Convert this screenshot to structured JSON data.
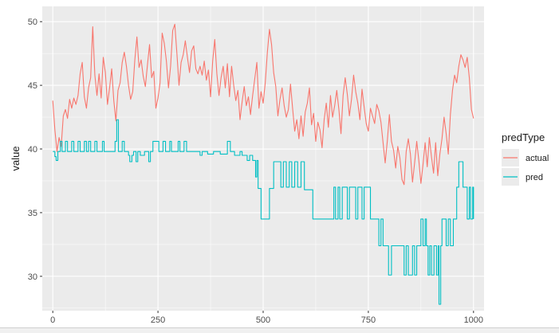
{
  "chart_data": {
    "type": "line",
    "title": "",
    "xlabel": "",
    "ylabel": "value",
    "xlim": [
      -25,
      1025
    ],
    "ylim": [
      27.3,
      51.2
    ],
    "x_ticks": [
      0,
      250,
      500,
      750,
      1000
    ],
    "y_ticks": [
      30,
      35,
      40,
      45,
      50
    ],
    "grid": true,
    "legend_title": "predType",
    "legend_position": "right",
    "series": [
      {
        "name": "actual",
        "color": "#F8766D",
        "points": [
          [
            0,
            43.8
          ],
          [
            5,
            41.5
          ],
          [
            10,
            39.8
          ],
          [
            15,
            40.9
          ],
          [
            20,
            40.2
          ],
          [
            25,
            42.6
          ],
          [
            30,
            43.1
          ],
          [
            35,
            42.4
          ],
          [
            40,
            43.9
          ],
          [
            45,
            43.2
          ],
          [
            50,
            44.0
          ],
          [
            55,
            43.5
          ],
          [
            60,
            44.2
          ],
          [
            65,
            45.9
          ],
          [
            70,
            46.8
          ],
          [
            75,
            44.1
          ],
          [
            80,
            43.2
          ],
          [
            85,
            44.8
          ],
          [
            90,
            45.6
          ],
          [
            95,
            49.6
          ],
          [
            100,
            45.8
          ],
          [
            105,
            44.2
          ],
          [
            110,
            45.9
          ],
          [
            115,
            44.0
          ],
          [
            120,
            47.2
          ],
          [
            125,
            46.0
          ],
          [
            130,
            43.5
          ],
          [
            135,
            44.8
          ],
          [
            140,
            46.3
          ],
          [
            145,
            43.8
          ],
          [
            150,
            42.2
          ],
          [
            155,
            44.6
          ],
          [
            160,
            45.2
          ],
          [
            165,
            46.8
          ],
          [
            170,
            47.6
          ],
          [
            175,
            46.5
          ],
          [
            180,
            45.0
          ],
          [
            185,
            43.9
          ],
          [
            190,
            44.5
          ],
          [
            195,
            47.0
          ],
          [
            200,
            48.8
          ],
          [
            205,
            46.4
          ],
          [
            210,
            47.0
          ],
          [
            215,
            45.7
          ],
          [
            220,
            44.9
          ],
          [
            225,
            46.6
          ],
          [
            230,
            48.2
          ],
          [
            235,
            45.6
          ],
          [
            240,
            46.1
          ],
          [
            245,
            43.2
          ],
          [
            250,
            44.0
          ],
          [
            255,
            45.2
          ],
          [
            260,
            49.1
          ],
          [
            265,
            48.3
          ],
          [
            270,
            46.9
          ],
          [
            275,
            44.8
          ],
          [
            280,
            46.5
          ],
          [
            285,
            49.3
          ],
          [
            290,
            49.8
          ],
          [
            295,
            47.5
          ],
          [
            300,
            45.0
          ],
          [
            305,
            46.8
          ],
          [
            310,
            47.4
          ],
          [
            315,
            48.5
          ],
          [
            320,
            47.2
          ],
          [
            325,
            46.0
          ],
          [
            330,
            47.7
          ],
          [
            335,
            48.1
          ],
          [
            340,
            46.3
          ],
          [
            345,
            45.9
          ],
          [
            350,
            46.5
          ],
          [
            355,
            45.8
          ],
          [
            360,
            46.9
          ],
          [
            365,
            45.4
          ],
          [
            370,
            46.2
          ],
          [
            375,
            44.1
          ],
          [
            380,
            46.9
          ],
          [
            385,
            48.6
          ],
          [
            390,
            45.9
          ],
          [
            395,
            44.2
          ],
          [
            400,
            45.6
          ],
          [
            405,
            46.5
          ],
          [
            410,
            44.8
          ],
          [
            415,
            46.7
          ],
          [
            420,
            44.1
          ],
          [
            425,
            46.5
          ],
          [
            430,
            45.0
          ],
          [
            435,
            43.8
          ],
          [
            440,
            44.6
          ],
          [
            445,
            42.3
          ],
          [
            450,
            43.7
          ],
          [
            455,
            44.9
          ],
          [
            460,
            43.4
          ],
          [
            465,
            44.1
          ],
          [
            470,
            42.7
          ],
          [
            475,
            44.2
          ],
          [
            480,
            45.5
          ],
          [
            485,
            46.8
          ],
          [
            490,
            43.2
          ],
          [
            495,
            44.5
          ],
          [
            500,
            43.6
          ],
          [
            505,
            45.2
          ],
          [
            510,
            47.6
          ],
          [
            515,
            49.4
          ],
          [
            520,
            48.2
          ],
          [
            525,
            46.0
          ],
          [
            530,
            44.9
          ],
          [
            535,
            42.6
          ],
          [
            540,
            43.9
          ],
          [
            545,
            44.8
          ],
          [
            550,
            43.4
          ],
          [
            555,
            42.5
          ],
          [
            560,
            43.1
          ],
          [
            565,
            45.1
          ],
          [
            570,
            43.2
          ],
          [
            575,
            41.4
          ],
          [
            580,
            42.3
          ],
          [
            585,
            40.8
          ],
          [
            590,
            42.6
          ],
          [
            595,
            41.0
          ],
          [
            600,
            42.9
          ],
          [
            605,
            43.6
          ],
          [
            610,
            44.8
          ],
          [
            615,
            41.9
          ],
          [
            620,
            42.8
          ],
          [
            625,
            40.6
          ],
          [
            630,
            42.1
          ],
          [
            635,
            41.5
          ],
          [
            640,
            40.1
          ],
          [
            645,
            42.3
          ],
          [
            650,
            43.6
          ],
          [
            655,
            41.7
          ],
          [
            660,
            44.2
          ],
          [
            665,
            42.5
          ],
          [
            670,
            43.4
          ],
          [
            675,
            44.6
          ],
          [
            680,
            43.1
          ],
          [
            685,
            41.2
          ],
          [
            690,
            44.2
          ],
          [
            695,
            45.6
          ],
          [
            700,
            44.3
          ],
          [
            705,
            42.6
          ],
          [
            710,
            43.9
          ],
          [
            715,
            45.8
          ],
          [
            720,
            44.5
          ],
          [
            725,
            43.6
          ],
          [
            730,
            42.3
          ],
          [
            735,
            44.7
          ],
          [
            740,
            43.3
          ],
          [
            745,
            42.0
          ],
          [
            750,
            41.4
          ],
          [
            755,
            43.2
          ],
          [
            760,
            42.6
          ],
          [
            765,
            42.0
          ],
          [
            770,
            43.5
          ],
          [
            775,
            43.0
          ],
          [
            780,
            42.1
          ],
          [
            785,
            40.5
          ],
          [
            790,
            38.9
          ],
          [
            795,
            40.6
          ],
          [
            800,
            42.7
          ],
          [
            805,
            40.6
          ],
          [
            810,
            39.9
          ],
          [
            815,
            38.5
          ],
          [
            820,
            40.2
          ],
          [
            825,
            39.3
          ],
          [
            830,
            37.6
          ],
          [
            835,
            37.2
          ],
          [
            840,
            39.8
          ],
          [
            845,
            40.8
          ],
          [
            850,
            39.6
          ],
          [
            855,
            37.4
          ],
          [
            860,
            38.9
          ],
          [
            865,
            40.6
          ],
          [
            870,
            39.1
          ],
          [
            875,
            37.3
          ],
          [
            880,
            38.8
          ],
          [
            885,
            40.5
          ],
          [
            890,
            38.6
          ],
          [
            895,
            40.9
          ],
          [
            900,
            39.4
          ],
          [
            905,
            38.1
          ],
          [
            910,
            40.5
          ],
          [
            915,
            37.9
          ],
          [
            920,
            39.6
          ],
          [
            925,
            40.8
          ],
          [
            930,
            42.5
          ],
          [
            935,
            41.2
          ],
          [
            940,
            39.6
          ],
          [
            945,
            42.7
          ],
          [
            950,
            44.6
          ],
          [
            955,
            45.8
          ],
          [
            960,
            45.2
          ],
          [
            965,
            46.5
          ],
          [
            970,
            47.4
          ],
          [
            975,
            47.0
          ],
          [
            980,
            46.4
          ],
          [
            985,
            47.2
          ],
          [
            990,
            45.6
          ],
          [
            995,
            43.1
          ],
          [
            1000,
            42.4
          ]
        ]
      },
      {
        "name": "pred",
        "color": "#00BFC4",
        "steps": [
          [
            0,
            39.8
          ],
          [
            5,
            39.4
          ],
          [
            8,
            39.1
          ],
          [
            12,
            39.8
          ],
          [
            18,
            40.6
          ],
          [
            22,
            39.8
          ],
          [
            30,
            40.6
          ],
          [
            35,
            39.8
          ],
          [
            45,
            40.6
          ],
          [
            50,
            39.8
          ],
          [
            60,
            40.6
          ],
          [
            65,
            39.8
          ],
          [
            75,
            40.6
          ],
          [
            80,
            39.8
          ],
          [
            85,
            40.6
          ],
          [
            90,
            39.8
          ],
          [
            100,
            40.6
          ],
          [
            105,
            39.8
          ],
          [
            118,
            40.6
          ],
          [
            122,
            39.8
          ],
          [
            148,
            40.6
          ],
          [
            152,
            42.3
          ],
          [
            156,
            39.8
          ],
          [
            165,
            40.6
          ],
          [
            170,
            39.8
          ],
          [
            180,
            39.5
          ],
          [
            183,
            39.0
          ],
          [
            188,
            39.5
          ],
          [
            192,
            39.8
          ],
          [
            198,
            39.0
          ],
          [
            202,
            39.8
          ],
          [
            208,
            39.5
          ],
          [
            218,
            39.8
          ],
          [
            228,
            39.0
          ],
          [
            232,
            39.8
          ],
          [
            238,
            40.6
          ],
          [
            252,
            39.8
          ],
          [
            262,
            40.6
          ],
          [
            268,
            39.8
          ],
          [
            278,
            40.6
          ],
          [
            282,
            39.8
          ],
          [
            298,
            40.6
          ],
          [
            302,
            39.8
          ],
          [
            312,
            40.6
          ],
          [
            318,
            39.8
          ],
          [
            350,
            39.5
          ],
          [
            355,
            39.8
          ],
          [
            368,
            39.6
          ],
          [
            382,
            39.8
          ],
          [
            398,
            39.6
          ],
          [
            415,
            40.6
          ],
          [
            422,
            39.8
          ],
          [
            432,
            39.5
          ],
          [
            445,
            39.8
          ],
          [
            450,
            39.5
          ],
          [
            462,
            39.1
          ],
          [
            468,
            39.5
          ],
          [
            475,
            39.1
          ],
          [
            482,
            37.8
          ],
          [
            485,
            39.1
          ],
          [
            488,
            36.9
          ],
          [
            495,
            34.5
          ],
          [
            515,
            36.9
          ],
          [
            525,
            39.0
          ],
          [
            542,
            37.0
          ],
          [
            548,
            39.0
          ],
          [
            555,
            37.0
          ],
          [
            562,
            39.0
          ],
          [
            568,
            37.0
          ],
          [
            575,
            39.0
          ],
          [
            582,
            37.0
          ],
          [
            590,
            39.0
          ],
          [
            598,
            36.8
          ],
          [
            618,
            34.5
          ],
          [
            668,
            37.0
          ],
          [
            672,
            34.5
          ],
          [
            678,
            37.0
          ],
          [
            682,
            34.5
          ],
          [
            688,
            37.0
          ],
          [
            700,
            34.5
          ],
          [
            705,
            37.0
          ],
          [
            720,
            34.5
          ],
          [
            725,
            37.0
          ],
          [
            735,
            34.5
          ],
          [
            740,
            37.0
          ],
          [
            755,
            34.5
          ],
          [
            775,
            32.4
          ],
          [
            780,
            34.5
          ],
          [
            785,
            32.4
          ],
          [
            798,
            30.1
          ],
          [
            805,
            32.4
          ],
          [
            835,
            30.1
          ],
          [
            840,
            32.4
          ],
          [
            845,
            30.1
          ],
          [
            855,
            32.4
          ],
          [
            860,
            30.1
          ],
          [
            865,
            32.4
          ],
          [
            875,
            34.5
          ],
          [
            880,
            32.4
          ],
          [
            885,
            34.5
          ],
          [
            888,
            32.4
          ],
          [
            892,
            30.1
          ],
          [
            896,
            32.4
          ],
          [
            900,
            30.1
          ],
          [
            906,
            32.4
          ],
          [
            912,
            30.1
          ],
          [
            916,
            32.4
          ],
          [
            918,
            27.8
          ],
          [
            922,
            32.4
          ],
          [
            925,
            34.5
          ],
          [
            935,
            32.4
          ],
          [
            940,
            34.5
          ],
          [
            945,
            32.4
          ],
          [
            952,
            34.5
          ],
          [
            960,
            37.0
          ],
          [
            965,
            39.0
          ],
          [
            975,
            37.0
          ],
          [
            985,
            34.5
          ],
          [
            990,
            37.0
          ],
          [
            993,
            34.5
          ],
          [
            998,
            37.0
          ],
          [
            1000,
            34.5
          ]
        ]
      }
    ]
  }
}
